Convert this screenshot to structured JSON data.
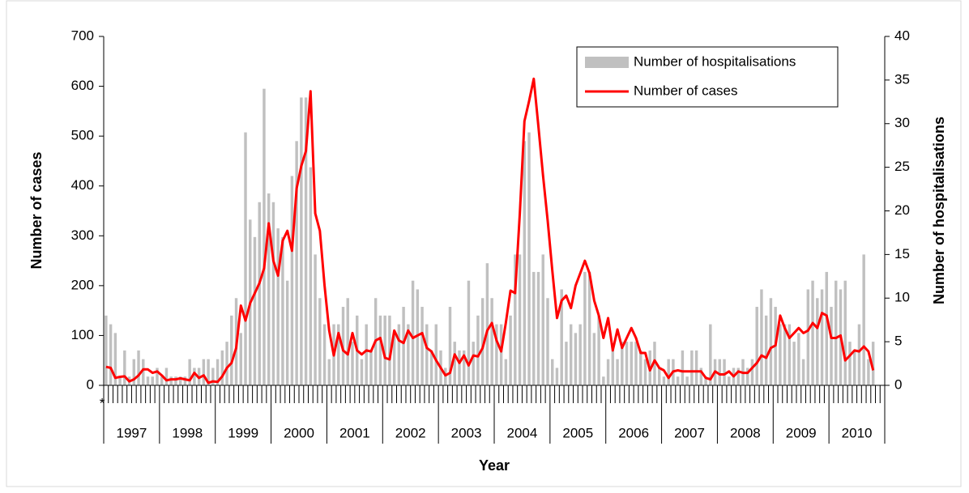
{
  "chart_data": {
    "type": "bar_line",
    "y_axis_label": "Number of cases",
    "y2_axis_label": "Number of hospitalisations",
    "x_axis_label": "Year",
    "marker_label": "*",
    "year_labels": [
      "1997",
      "1998",
      "1999",
      "2000",
      "2001",
      "2002",
      "2003",
      "2004",
      "2005",
      "2006",
      "2007",
      "2008",
      "2009",
      "2010"
    ],
    "categories": [
      null,
      null,
      null,
      null,
      null,
      null,
      null,
      null,
      null,
      null,
      null,
      null,
      null,
      null,
      null,
      null,
      null,
      null,
      null,
      null,
      null,
      null,
      null,
      null,
      null,
      null,
      null,
      null,
      null,
      null,
      null,
      null,
      null,
      null,
      null,
      null,
      null,
      null,
      null,
      null,
      null,
      null,
      null,
      null,
      null,
      null,
      null,
      null,
      null,
      null,
      null,
      null,
      null,
      null,
      null,
      null,
      null,
      null,
      null,
      null,
      null,
      null,
      null,
      null,
      null,
      null,
      null,
      null,
      null,
      null,
      null,
      null,
      null,
      null,
      null,
      null,
      null,
      null,
      null,
      null,
      null,
      null,
      null,
      null,
      null,
      null,
      null,
      null,
      null,
      null,
      null,
      null,
      null,
      null,
      null,
      null,
      null,
      null,
      null,
      null,
      null,
      null,
      null,
      null,
      null,
      null,
      null,
      null,
      null,
      null,
      null,
      null,
      null,
      null,
      null,
      null,
      null,
      null,
      null,
      null,
      null,
      null,
      null,
      null,
      null,
      null,
      null,
      null,
      null,
      null,
      null,
      null,
      null,
      null,
      null,
      null,
      null,
      null,
      null,
      null,
      null,
      null,
      null,
      null,
      null,
      null,
      null,
      null,
      null,
      null,
      null,
      null,
      null,
      null,
      null,
      null,
      null,
      null,
      null,
      null,
      null,
      null,
      null,
      null,
      null,
      null,
      null,
      null
    ],
    "ylim": [
      0,
      700
    ],
    "yticks": [
      0,
      100,
      200,
      300,
      400,
      500,
      600,
      700
    ],
    "y2lim": [
      0,
      40
    ],
    "y2ticks": [
      0,
      5,
      10,
      15,
      20,
      25,
      30,
      35,
      40
    ],
    "legend": "top-right",
    "series": [
      {
        "name": "Number of hospitalisations",
        "type": "bar",
        "axis": "y2",
        "color": "#c0c0c0",
        "values": [
          8,
          7,
          6,
          1,
          4,
          1,
          3,
          4,
          3,
          1,
          1,
          2,
          1,
          2,
          1,
          1,
          1,
          1,
          3,
          2,
          2,
          3,
          3,
          2,
          3,
          4,
          5,
          8,
          10,
          6,
          29,
          19,
          17,
          21,
          34,
          22,
          21,
          18,
          17,
          12,
          24,
          28,
          33,
          33,
          25,
          15,
          10,
          7,
          3,
          7,
          7,
          9,
          10,
          5,
          8,
          3,
          7,
          4,
          10,
          8,
          8,
          8,
          6,
          7,
          9,
          7,
          12,
          11,
          9,
          7,
          4,
          7,
          4,
          2,
          9,
          5,
          4,
          4,
          12,
          5,
          8,
          10,
          14,
          10,
          7,
          7,
          3,
          8,
          15,
          15,
          28,
          29,
          13,
          13,
          15,
          10,
          3,
          2,
          11,
          5,
          7,
          6,
          7,
          13,
          13,
          6,
          8,
          1,
          3,
          4,
          3,
          5,
          5,
          5,
          5,
          4,
          3,
          4,
          5,
          2,
          1,
          3,
          3,
          1,
          4,
          1,
          4,
          4,
          2,
          1,
          7,
          3,
          3,
          3,
          1,
          2,
          2,
          3,
          2,
          3,
          9,
          11,
          8,
          10,
          9,
          7,
          7,
          7,
          5,
          6,
          3,
          11,
          12,
          10,
          11,
          13,
          9,
          12,
          11,
          12,
          5,
          4,
          7,
          15,
          3,
          5,
          null,
          null
        ]
      },
      {
        "name": "Number of cases",
        "type": "line",
        "color": "#ff0000",
        "values": [
          37,
          35,
          15,
          17,
          18,
          8,
          12,
          20,
          32,
          32,
          25,
          28,
          20,
          10,
          12,
          12,
          14,
          12,
          10,
          25,
          15,
          20,
          5,
          8,
          7,
          18,
          35,
          45,
          75,
          160,
          130,
          165,
          185,
          205,
          235,
          325,
          250,
          220,
          290,
          310,
          270,
          395,
          440,
          470,
          590,
          345,
          310,
          200,
          110,
          60,
          105,
          70,
          62,
          105,
          70,
          62,
          70,
          68,
          90,
          95,
          55,
          52,
          110,
          90,
          85,
          110,
          95,
          100,
          105,
          75,
          68,
          50,
          35,
          20,
          25,
          62,
          45,
          60,
          40,
          60,
          58,
          75,
          110,
          125,
          90,
          68,
          125,
          190,
          185,
          345,
          530,
          570,
          615,
          520,
          420,
          330,
          230,
          135,
          170,
          180,
          155,
          200,
          225,
          250,
          225,
          170,
          140,
          95,
          135,
          70,
          112,
          75,
          95,
          115,
          95,
          65,
          65,
          30,
          50,
          35,
          30,
          15,
          28,
          30,
          28,
          28,
          28,
          28,
          28,
          15,
          12,
          28,
          22,
          22,
          28,
          18,
          28,
          25,
          25,
          35,
          45,
          60,
          55,
          75,
          80,
          140,
          115,
          95,
          105,
          115,
          105,
          110,
          125,
          115,
          145,
          140,
          95,
          95,
          100,
          50,
          60,
          70,
          68,
          78,
          68,
          30,
          null,
          null
        ]
      }
    ]
  }
}
